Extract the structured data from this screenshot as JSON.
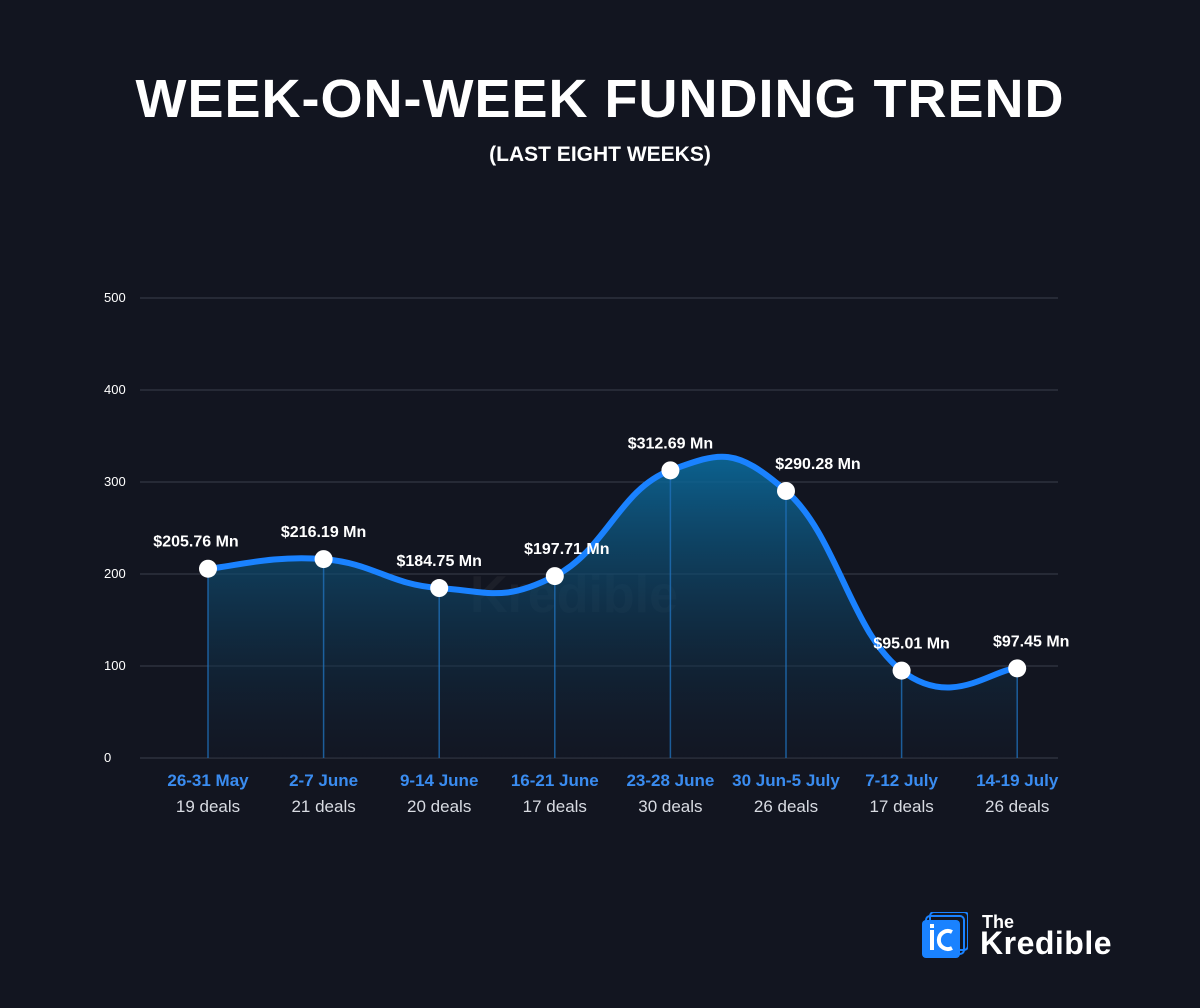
{
  "title": "WEEK-ON-WEEK FUNDING TREND",
  "subtitle": "(LAST EIGHT WEEKS)",
  "logo": {
    "small": "The",
    "name": "Kredible"
  },
  "colors": {
    "background": "#121520",
    "line": "#1a82ff",
    "category": "#3a8cf0",
    "grid": "#3a3e4c"
  },
  "chart_data": {
    "type": "area",
    "title": "WEEK-ON-WEEK FUNDING TREND",
    "subtitle": "(LAST EIGHT WEEKS)",
    "categories": [
      "26-31 May",
      "2-7 June",
      "9-14 June",
      "16-21 June",
      "23-28 June",
      "30 Jun-5 July",
      "7-12 July",
      "14-19 July"
    ],
    "deals": [
      "19 deals",
      "21 deals",
      "20 deals",
      "17 deals",
      "30 deals",
      "26 deals",
      "17 deals",
      "26 deals"
    ],
    "values": [
      205.76,
      216.19,
      184.75,
      197.71,
      312.69,
      290.28,
      95.01,
      97.45
    ],
    "data_labels": [
      "$205.76 Mn",
      "$216.19 Mn",
      "$184.75 Mn",
      "$197.71 Mn",
      "$312.69 Mn",
      "$290.28 Mn",
      "$95.01 Mn",
      "$97.45 Mn"
    ],
    "yticks": [
      0,
      100,
      200,
      300,
      400,
      500
    ],
    "ylim": [
      0,
      500
    ],
    "grid": true,
    "smooth": true,
    "xlabel": "",
    "ylabel": ""
  }
}
